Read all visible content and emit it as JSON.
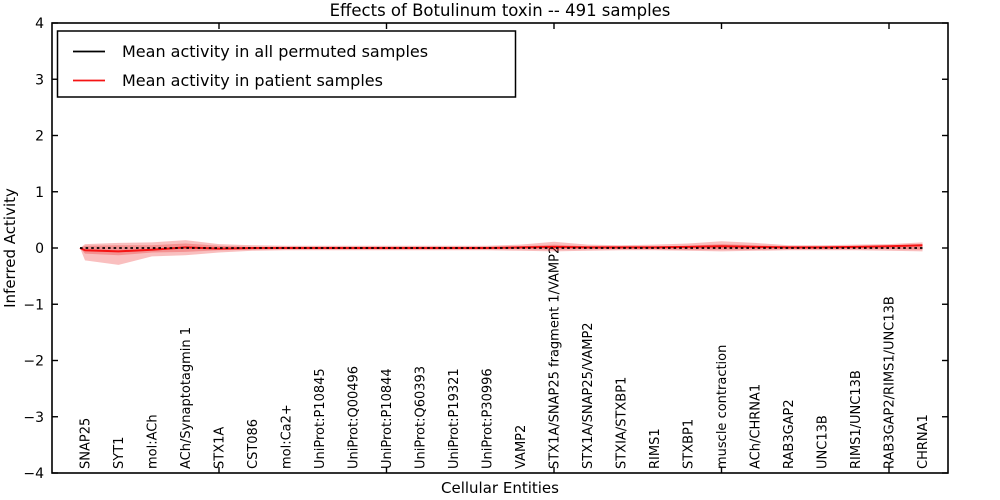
{
  "chart_data": {
    "type": "line",
    "title": "Effects of Botulinum toxin -- 491 samples",
    "xlabel": "Cellular Entities",
    "ylabel": "Inferred Activity",
    "ylim": [
      -4,
      4
    ],
    "ytick_values": [
      4,
      3,
      2,
      1,
      0,
      -1,
      -2,
      -3,
      -4
    ],
    "ytick_labels": [
      "4",
      "3",
      "2",
      "1",
      "0",
      "−1",
      "−2",
      "−3",
      "−4"
    ],
    "grid": false,
    "legend_position": "upper-left",
    "legend": [
      {
        "label": "Mean activity in all permuted samples",
        "color": "#000000",
        "style": "solid"
      },
      {
        "label": "Mean activity in patient samples",
        "color": "#f51414",
        "style": "solid"
      }
    ],
    "categories": [
      "SNAP25",
      "SYT1",
      "mol:ACh",
      "ACh/Synaptotagmin 1",
      "STX1A",
      "CST086",
      "mol:Ca2+",
      "UniProt:P10845",
      "UniProt:Q00496",
      "UniProt:P10844",
      "UniProt:Q60393",
      "UniProt:P19321",
      "UniProt:P30996",
      "VAMP2",
      "STX1A/SNAP25 fragment 1/VAMP2",
      "STX1A/SNAP25/VAMP2",
      "STXIA/STXBP1",
      "RIMS1",
      "STXBP1",
      "muscle contraction",
      "ACh/CHRNA1",
      "RAB3GAP2",
      "UNC13B",
      "RIMS1/UNC13B",
      "RAB3GAP2/RIMS1/UNC13B",
      "CHRNA1"
    ],
    "series": [
      {
        "name": "Mean activity in all permuted samples",
        "color": "#000000",
        "linestyle": "dotted",
        "values": [
          0,
          0,
          0,
          0,
          0,
          0,
          0,
          0,
          0,
          0,
          0,
          0,
          0,
          0,
          0,
          0,
          0,
          0,
          0,
          0,
          0,
          0,
          0,
          0,
          0,
          0
        ]
      },
      {
        "name": "Mean activity in patient samples",
        "color": "#f51414",
        "linestyle": "solid",
        "values": [
          -0.04,
          -0.06,
          -0.03,
          0.01,
          -0.01,
          0,
          0,
          0,
          0,
          0,
          0,
          0,
          0,
          0.01,
          0.02,
          0.01,
          0.01,
          0.01,
          0.02,
          0.03,
          0.02,
          0.01,
          0.01,
          0.02,
          0.03,
          0.05
        ]
      }
    ],
    "band_color": "#eb1919",
    "band_outer": {
      "upper": [
        0.07,
        0.09,
        0.1,
        0.14,
        0.07,
        0.05,
        0.04,
        0.04,
        0.04,
        0.04,
        0.04,
        0.04,
        0.04,
        0.06,
        0.11,
        0.06,
        0.05,
        0.06,
        0.08,
        0.12,
        0.09,
        0.05,
        0.05,
        0.06,
        0.07,
        0.1
      ],
      "lower": [
        -0.22,
        -0.3,
        -0.15,
        -0.13,
        -0.08,
        -0.05,
        -0.04,
        -0.04,
        -0.04,
        -0.04,
        -0.04,
        -0.04,
        -0.04,
        -0.05,
        -0.06,
        -0.05,
        -0.04,
        -0.04,
        -0.05,
        -0.06,
        -0.05,
        -0.04,
        -0.04,
        -0.04,
        -0.05,
        -0.06
      ]
    },
    "band_inner": {
      "upper": [
        0.04,
        0.05,
        0.05,
        0.08,
        0.04,
        0.02,
        0.02,
        0.02,
        0.02,
        0.02,
        0.02,
        0.02,
        0.02,
        0.03,
        0.06,
        0.03,
        0.03,
        0.03,
        0.04,
        0.07,
        0.05,
        0.03,
        0.03,
        0.03,
        0.04,
        0.06
      ],
      "lower": [
        -0.1,
        -0.13,
        -0.08,
        -0.07,
        -0.04,
        -0.03,
        -0.02,
        -0.02,
        -0.02,
        -0.02,
        -0.02,
        -0.02,
        -0.02,
        -0.02,
        -0.03,
        -0.02,
        -0.02,
        -0.02,
        -0.03,
        -0.03,
        -0.03,
        -0.02,
        -0.02,
        -0.02,
        -0.02,
        -0.03
      ]
    },
    "x_major_tick_every": 5
  }
}
